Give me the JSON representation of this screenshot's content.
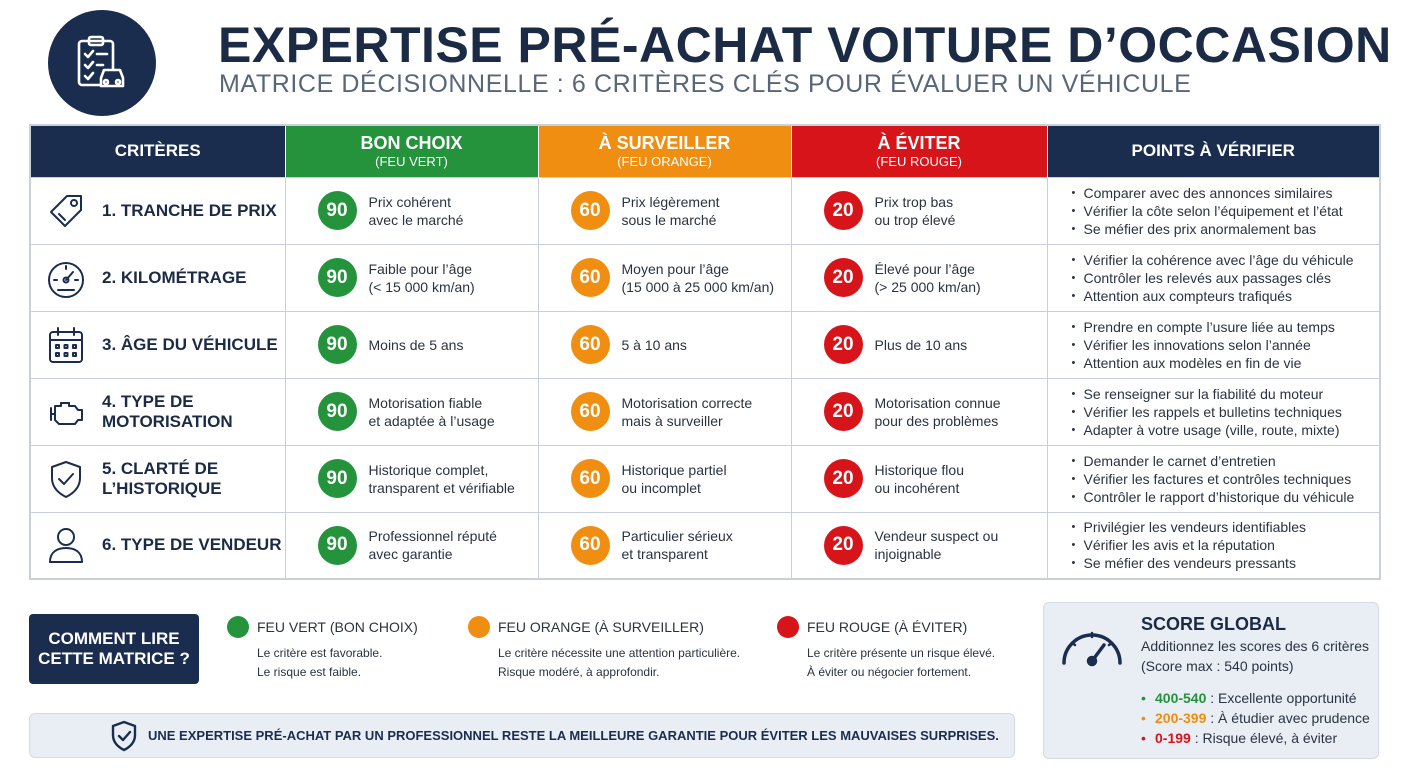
{
  "header": {
    "logo_icon": "clipboard-car-icon",
    "title": "EXPERTISE PRÉ-ACHAT VOITURE D’OCCASION",
    "subtitle": "MATRICE DÉCISIONNELLE : 6 CRITÈRES CLÉS POUR ÉVALUER UN VÉHICULE"
  },
  "columns": {
    "criteria": "CRITÈRES",
    "good": {
      "title": "BON CHOIX",
      "sub": "(FEU VERT)",
      "color": "#24933b"
    },
    "watch": {
      "title": "À SURVEILLER",
      "sub": "(FEU ORANGE)",
      "color": "#ef8e10"
    },
    "avoid": {
      "title": "À ÉVITER",
      "sub": "(FEU ROUGE)",
      "color": "#d8141b"
    },
    "points": "POINTS À VÉRIFIER"
  },
  "rows": [
    {
      "icon": "price-tag-icon",
      "label": "1. TRANCHE DE PRIX",
      "good": {
        "score": "90",
        "text": "Prix cohérent\navec le marché"
      },
      "watch": {
        "score": "60",
        "text": "Prix légèrement\nsous le marché"
      },
      "avoid": {
        "score": "20",
        "text": "Prix trop bas\nou trop élevé"
      },
      "points": [
        "Comparer avec des annonces similaires",
        "Vérifier la côte selon l’équipement et l’état",
        "Se méfier des prix anormalement bas"
      ]
    },
    {
      "icon": "speedometer-icon",
      "label": "2. KILOMÉTRAGE",
      "good": {
        "score": "90",
        "text": "Faible pour l’âge\n(< 15 000 km/an)"
      },
      "watch": {
        "score": "60",
        "text": "Moyen pour l’âge\n(15 000 à 25 000 km/an)"
      },
      "avoid": {
        "score": "20",
        "text": "Élevé pour l’âge\n(> 25 000 km/an)"
      },
      "points": [
        "Vérifier la cohérence avec l’âge du véhicule",
        "Contrôler les relevés aux passages clés",
        "Attention aux compteurs trafiqués"
      ]
    },
    {
      "icon": "calendar-icon",
      "label": "3. ÂGE DU VÉHICULE",
      "good": {
        "score": "90",
        "text": "Moins de 5 ans"
      },
      "watch": {
        "score": "60",
        "text": "5 à 10 ans"
      },
      "avoid": {
        "score": "20",
        "text": "Plus de 10 ans"
      },
      "points": [
        "Prendre en compte l’usure liée au temps",
        "Vérifier les innovations selon l’année",
        "Attention aux modèles en fin de vie"
      ]
    },
    {
      "icon": "engine-icon",
      "label": "4. TYPE DE\nMOTORISATION",
      "good": {
        "score": "90",
        "text": "Motorisation fiable\net adaptée à l’usage"
      },
      "watch": {
        "score": "60",
        "text": "Motorisation correcte\nmais à surveiller"
      },
      "avoid": {
        "score": "20",
        "text": "Motorisation connue\npour des problèmes"
      },
      "points": [
        "Se renseigner sur la fiabilité du moteur",
        "Vérifier les rappels et bulletins techniques",
        "Adapter à votre usage (ville, route, mixte)"
      ]
    },
    {
      "icon": "shield-check-icon",
      "label": "5. CLARTÉ DE\nL’HISTORIQUE",
      "good": {
        "score": "90",
        "text": "Historique complet,\ntransparent et vérifiable"
      },
      "watch": {
        "score": "60",
        "text": "Historique partiel\nou incomplet"
      },
      "avoid": {
        "score": "20",
        "text": "Historique flou\nou incohérent"
      },
      "points": [
        "Demander le carnet d’entretien",
        "Vérifier les factures et contrôles techniques",
        "Contrôler le rapport d’historique du véhicule"
      ]
    },
    {
      "icon": "person-icon",
      "label": "6. TYPE DE VENDEUR",
      "good": {
        "score": "90",
        "text": "Professionnel réputé\navec garantie"
      },
      "watch": {
        "score": "60",
        "text": "Particulier sérieux\net transparent"
      },
      "avoid": {
        "score": "20",
        "text": "Vendeur suspect ou\ninjoignable"
      },
      "points": [
        "Privilégier les vendeurs identifiables",
        "Vérifier les avis et la réputation",
        "Se méfier des vendeurs pressants"
      ]
    }
  ],
  "legend": {
    "howto": "COMMENT LIRE\nCETTE MATRICE ?",
    "green": {
      "name": "FEU VERT",
      "paren": "(BON CHOIX)",
      "line1": "Le critère est favorable.",
      "line2": "Le risque est faible."
    },
    "orange": {
      "name": "FEU ORANGE",
      "paren": "(À SURVEILLER)",
      "line1": "Le critère nécessite une attention particulière.",
      "line2": "Risque modéré, à approfondir."
    },
    "red": {
      "name": "FEU ROUGE",
      "paren": "(À ÉVITER)",
      "line1": "Le critère présente un risque élevé.",
      "line2": "À éviter ou négocier fortement."
    }
  },
  "score": {
    "icon": "gauge-icon",
    "title": "SCORE GLOBAL",
    "line1": "Additionnez les scores des 6 critères",
    "line2": "(Score max : 540 points)",
    "ranges": [
      {
        "range": "400-540",
        "label": " : Excellente opportunité"
      },
      {
        "range": "200-399",
        "label": " : À étudier avec prudence"
      },
      {
        "range": "0-199",
        "label": " : Risque élevé, à éviter"
      }
    ]
  },
  "banner": {
    "icon": "shield-check-icon",
    "text": "UNE EXPERTISE PRÉ-ACHAT PAR UN PROFESSIONNEL RESTE LA MEILLEURE GARANTIE POUR ÉVITER LES MAUVAISES SURPRISES."
  }
}
